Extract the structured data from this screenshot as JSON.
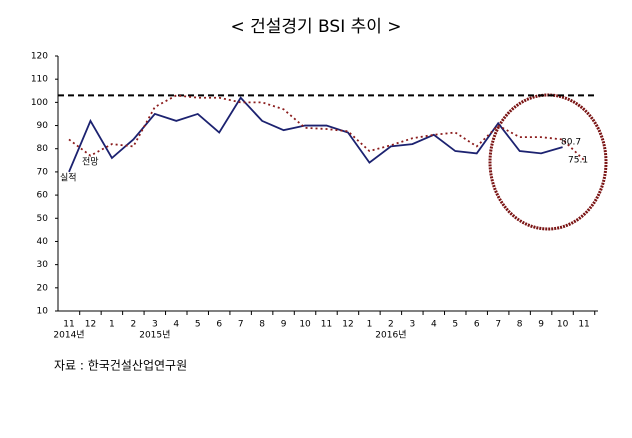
{
  "chart_data": {
    "type": "line",
    "title": "< 건설경기 BSI 추이 >",
    "categories": [
      "11",
      "12",
      "1",
      "2",
      "3",
      "4",
      "5",
      "6",
      "7",
      "8",
      "9",
      "10",
      "11",
      "12",
      "1",
      "2",
      "3",
      "4",
      "5",
      "6",
      "7",
      "8",
      "9",
      "10",
      "11"
    ],
    "category_groups": [
      "2014년",
      null,
      null,
      null,
      "2015년",
      null,
      null,
      null,
      null,
      null,
      null,
      null,
      null,
      null,
      null,
      "2016년",
      null,
      null,
      null,
      null,
      null,
      null,
      null,
      null,
      null
    ],
    "series": [
      {
        "name": "실적",
        "color": "#1c2270",
        "style": "solid",
        "values": [
          70,
          92,
          76,
          84,
          95,
          92,
          95,
          87,
          102,
          92,
          88,
          90,
          90,
          87,
          74,
          81,
          82,
          86,
          79,
          78,
          91,
          79,
          78,
          80.7,
          null
        ]
      },
      {
        "name": "전망",
        "color": "#8b1c1c",
        "style": "dotted",
        "values": [
          84,
          77,
          82,
          81,
          98,
          103,
          102,
          102,
          100,
          100,
          97,
          89,
          88.5,
          87.5,
          79,
          81.5,
          84.5,
          86,
          87,
          81,
          90,
          85,
          85,
          84,
          75.1
        ]
      }
    ],
    "reference_line": 103,
    "ylim": [
      10,
      120
    ],
    "yticks": [
      10,
      20,
      30,
      40,
      50,
      60,
      70,
      80,
      90,
      100,
      110,
      120
    ],
    "source": "자료 : 한국건설산업연구원"
  }
}
